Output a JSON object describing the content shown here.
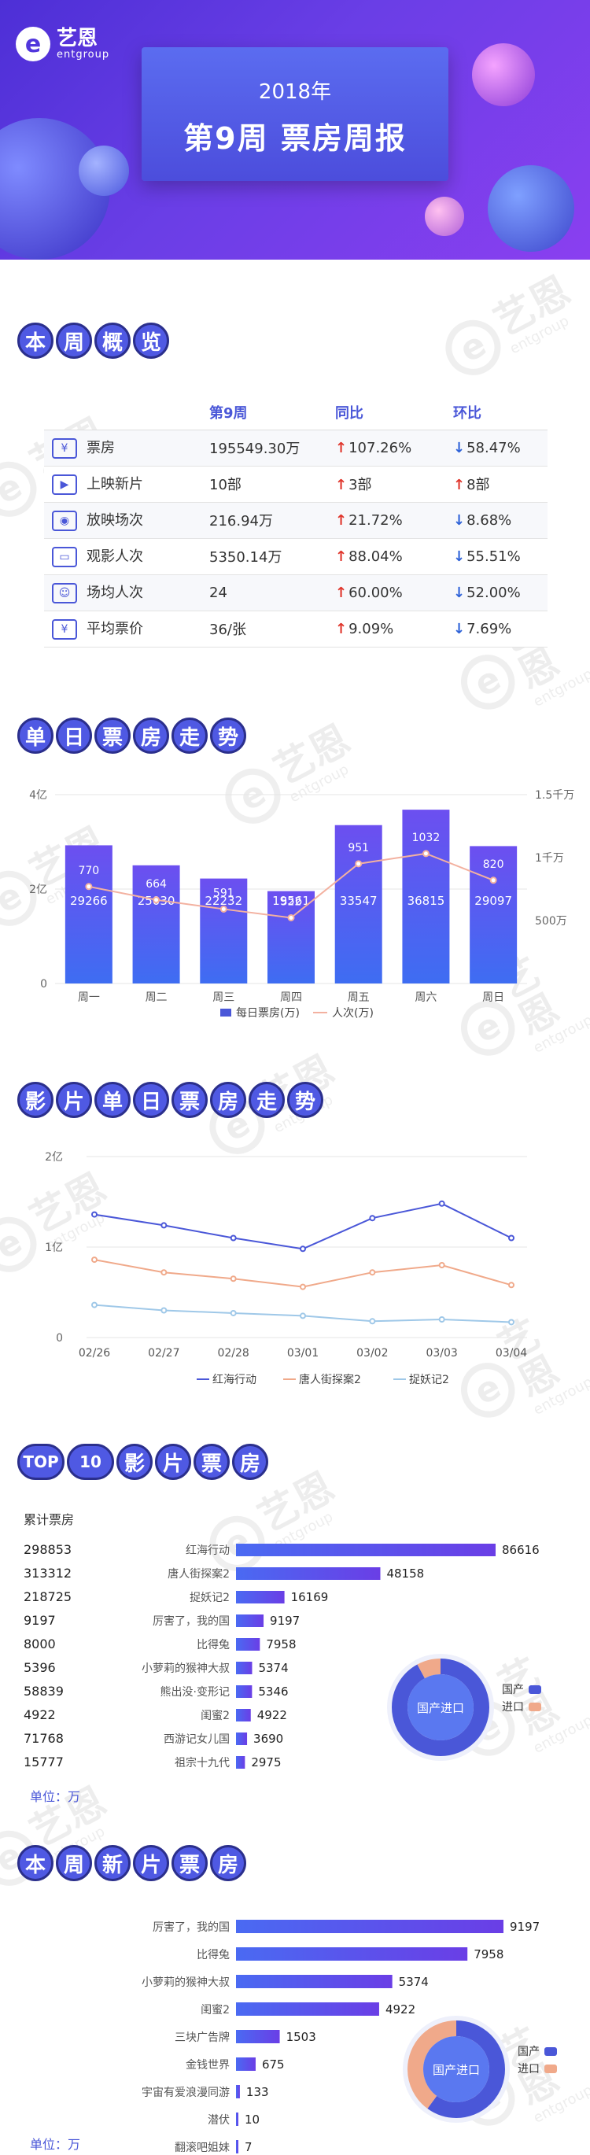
{
  "header": {
    "brand_cn": "艺恩",
    "brand_en": "entgroup",
    "year": "2018年",
    "title": "第9周 票房周报"
  },
  "sections": {
    "overview": [
      "本",
      "周",
      "概",
      "览"
    ],
    "daily": [
      "单",
      "日",
      "票",
      "房",
      "走",
      "势"
    ],
    "film_daily": [
      "影",
      "片",
      "单",
      "日",
      "票",
      "房",
      "走",
      "势"
    ],
    "top10": [
      "TOP",
      "10",
      "影",
      "片",
      "票",
      "房"
    ],
    "new_films": [
      "本",
      "周",
      "新",
      "片",
      "票",
      "房"
    ]
  },
  "overview": {
    "headers": [
      "",
      "第9周",
      "同比",
      "环比"
    ],
    "rows": [
      {
        "icon": "¥",
        "icon_name": "ticket-icon",
        "label": "票房",
        "value": "195549.30万",
        "yoy_dir": "up",
        "yoy": "107.26%",
        "wow_dir": "down",
        "wow": "58.47%"
      },
      {
        "icon": "▶",
        "icon_name": "film-icon",
        "label": "上映新片",
        "value": "10部",
        "yoy_dir": "up",
        "yoy": "3部",
        "wow_dir": "up",
        "wow": "8部"
      },
      {
        "icon": "◉",
        "icon_name": "camera-icon",
        "label": "放映场次",
        "value": "216.94万",
        "yoy_dir": "up",
        "yoy": "21.72%",
        "wow_dir": "down",
        "wow": "8.68%"
      },
      {
        "icon": "▭",
        "icon_name": "screen-icon",
        "label": "观影人次",
        "value": "5350.14万",
        "yoy_dir": "up",
        "yoy": "88.04%",
        "wow_dir": "down",
        "wow": "55.51%"
      },
      {
        "icon": "☺",
        "icon_name": "audience-icon",
        "label": "场均人次",
        "value": "24",
        "yoy_dir": "up",
        "yoy": "60.00%",
        "wow_dir": "down",
        "wow": "52.00%"
      },
      {
        "icon": "¥",
        "icon_name": "price-icon",
        "label": "平均票价",
        "value": "36/张",
        "yoy_dir": "up",
        "yoy": "9.09%",
        "wow_dir": "down",
        "wow": "7.69%"
      }
    ]
  },
  "chart_data": [
    {
      "type": "bar",
      "categories": [
        "周一",
        "周二",
        "周三",
        "周四",
        "周五",
        "周六",
        "周日"
      ],
      "series": [
        {
          "name": "每日票房(万)",
          "type": "bar",
          "axis": "left",
          "values": [
            29266,
            25030,
            22232,
            19561,
            33547,
            36815,
            29097
          ]
        },
        {
          "name": "人次(万)",
          "type": "line",
          "axis": "right",
          "values": [
            770,
            664,
            591,
            522,
            951,
            1032,
            820
          ]
        }
      ],
      "y_left_ticks": [
        "0",
        "2亿",
        "4亿"
      ],
      "y_left_lim": [
        0,
        40000
      ],
      "y_right_ticks": [
        "500万",
        "1千万",
        "1.5千万"
      ],
      "y_right_lim": [
        0,
        1500
      ],
      "legend": "bottom"
    },
    {
      "type": "line",
      "categories": [
        "02/26",
        "02/27",
        "02/28",
        "03/01",
        "03/02",
        "03/03",
        "03/04"
      ],
      "series": [
        {
          "name": "红海行动",
          "values": [
            13600,
            12400,
            11000,
            9800,
            13200,
            14800,
            11000
          ],
          "color": "#4a57d8"
        },
        {
          "name": "唐人街探案2",
          "values": [
            8600,
            7200,
            6500,
            5600,
            7200,
            8000,
            5800
          ],
          "color": "#f0a98a"
        },
        {
          "name": "捉妖记2",
          "values": [
            3600,
            3000,
            2700,
            2400,
            1800,
            2000,
            1700
          ],
          "color": "#9fc8e8"
        }
      ],
      "y_ticks": [
        "0",
        "1亿",
        "2亿"
      ],
      "ylim": [
        0,
        20000
      ],
      "legend": "bottom"
    },
    {
      "type": "bar",
      "orientation": "horizontal",
      "header": "累计票房",
      "unit": "单位：万",
      "categories": [
        "红海行动",
        "唐人街探案2",
        "捉妖记2",
        "厉害了，我的国",
        "比得兔",
        "小萝莉的猴神大叔",
        "熊出没·变形记",
        "闺蜜2",
        "西游记女儿国",
        "祖宗十九代"
      ],
      "cumulative": [
        "298853",
        "313312",
        "218725",
        "9197",
        "8000",
        "5396",
        "58839",
        "4922",
        "71768",
        "15777"
      ],
      "values": [
        86616,
        48158,
        16169,
        9197,
        7958,
        5374,
        5346,
        4922,
        3690,
        2975
      ],
      "donut": {
        "center": "国产进口",
        "legend": [
          "国产",
          "进口"
        ],
        "values": [
          92,
          8
        ],
        "colors": [
          "#4a57d8",
          "#f0a98a"
        ]
      }
    },
    {
      "type": "bar",
      "orientation": "horizontal",
      "unit": "单位：万",
      "categories": [
        "厉害了，我的国",
        "比得兔",
        "小萝莉的猴神大叔",
        "闺蜜2",
        "三块广告牌",
        "金钱世界",
        "宇宙有爱浪漫同游",
        "潜伏",
        "翻滚吧姐妹"
      ],
      "values": [
        9197,
        7958,
        5374,
        4922,
        1503,
        675,
        133,
        10,
        7
      ],
      "donut": {
        "center": "国产进口",
        "legend": [
          "国产",
          "进口"
        ],
        "values": [
          60,
          40
        ],
        "colors": [
          "#4a57d8",
          "#f0a98a"
        ]
      }
    }
  ]
}
